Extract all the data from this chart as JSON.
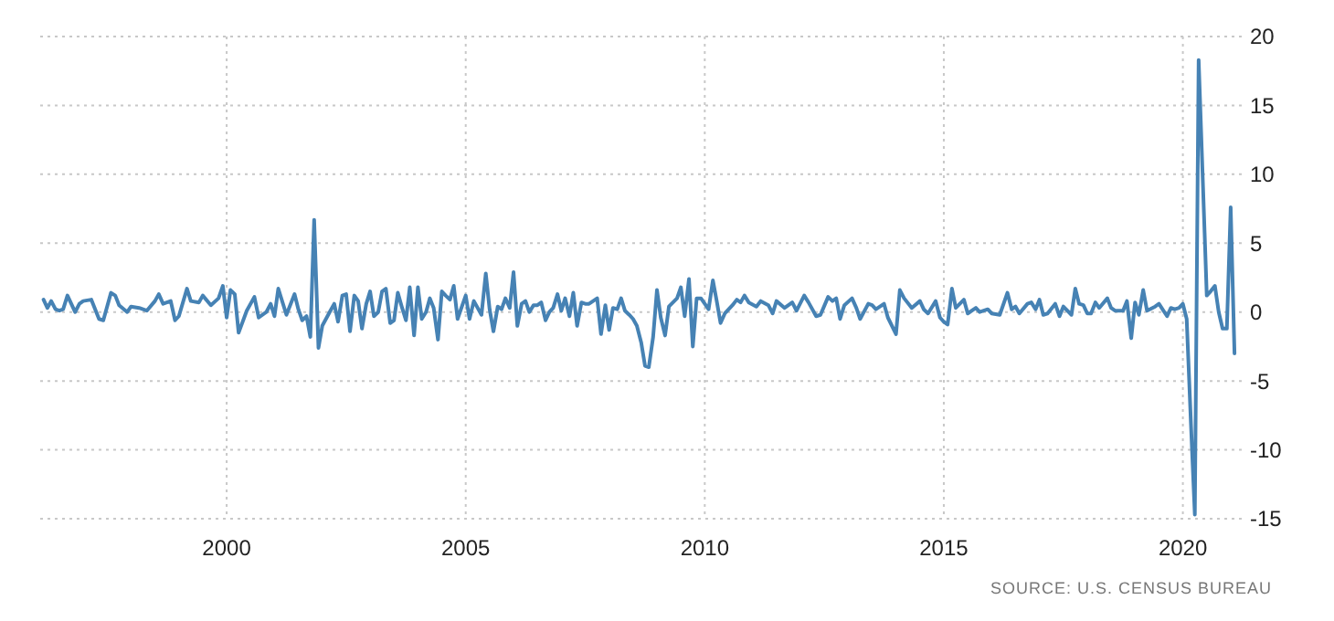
{
  "chart_data": {
    "type": "line",
    "xlim": [
      1996.1,
      2021.25
    ],
    "xticks": [
      2000,
      2005,
      2010,
      2015,
      2020
    ],
    "ylim": [
      -15,
      20
    ],
    "yticks": [
      -15,
      -10,
      -5,
      0,
      5,
      10,
      15,
      20
    ],
    "grid": true,
    "marker": "none",
    "line_style": "solid",
    "annotations": [
      "SOURCE: U.S. CENSUS BUREAU"
    ],
    "series": [
      {
        "color": "#4682b4",
        "x": [
          1996.17,
          1996.25,
          1996.33,
          1996.42,
          1996.5,
          1996.58,
          1996.67,
          1996.83,
          1996.92,
          1997.0,
          1997.17,
          1997.33,
          1997.42,
          1997.58,
          1997.67,
          1997.75,
          1997.92,
          1998.0,
          1998.17,
          1998.33,
          1998.5,
          1998.58,
          1998.67,
          1998.83,
          1998.92,
          1999.0,
          1999.17,
          1999.25,
          1999.42,
          1999.5,
          1999.67,
          1999.83,
          1999.92,
          2000.0,
          2000.08,
          2000.17,
          2000.25,
          2000.42,
          2000.58,
          2000.67,
          2000.83,
          2000.92,
          2001.0,
          2001.08,
          2001.25,
          2001.42,
          2001.5,
          2001.58,
          2001.67,
          2001.75,
          2001.83,
          2001.92,
          2002.0,
          2002.17,
          2002.25,
          2002.33,
          2002.42,
          2002.5,
          2002.58,
          2002.67,
          2002.75,
          2002.83,
          2002.92,
          2003.0,
          2003.08,
          2003.17,
          2003.25,
          2003.33,
          2003.42,
          2003.5,
          2003.58,
          2003.67,
          2003.75,
          2003.83,
          2003.92,
          2004.0,
          2004.08,
          2004.17,
          2004.25,
          2004.33,
          2004.42,
          2004.5,
          2004.58,
          2004.67,
          2004.75,
          2004.83,
          2005.0,
          2005.08,
          2005.17,
          2005.33,
          2005.42,
          2005.5,
          2005.58,
          2005.67,
          2005.75,
          2005.83,
          2005.92,
          2006.0,
          2006.08,
          2006.17,
          2006.25,
          2006.33,
          2006.42,
          2006.5,
          2006.58,
          2006.67,
          2006.75,
          2006.83,
          2006.92,
          2007.0,
          2007.08,
          2007.17,
          2007.25,
          2007.33,
          2007.42,
          2007.5,
          2007.58,
          2007.75,
          2007.83,
          2007.92,
          2008.0,
          2008.08,
          2008.17,
          2008.25,
          2008.33,
          2008.42,
          2008.5,
          2008.58,
          2008.67,
          2008.75,
          2008.83,
          2008.92,
          2009.0,
          2009.08,
          2009.17,
          2009.25,
          2009.42,
          2009.5,
          2009.58,
          2009.67,
          2009.75,
          2009.83,
          2009.92,
          2010.0,
          2010.08,
          2010.17,
          2010.25,
          2010.33,
          2010.42,
          2010.5,
          2010.58,
          2010.67,
          2010.75,
          2010.83,
          2010.92,
          2011.08,
          2011.17,
          2011.33,
          2011.42,
          2011.5,
          2011.67,
          2011.83,
          2011.92,
          2012.08,
          2012.17,
          2012.33,
          2012.42,
          2012.58,
          2012.67,
          2012.75,
          2012.83,
          2012.92,
          2013.08,
          2013.17,
          2013.25,
          2013.42,
          2013.5,
          2013.58,
          2013.75,
          2013.83,
          2014.0,
          2014.08,
          2014.17,
          2014.33,
          2014.5,
          2014.58,
          2014.67,
          2014.83,
          2014.92,
          2015.0,
          2015.08,
          2015.17,
          2015.25,
          2015.42,
          2015.5,
          2015.67,
          2015.75,
          2015.92,
          2016.0,
          2016.17,
          2016.33,
          2016.42,
          2016.5,
          2016.58,
          2016.75,
          2016.83,
          2016.92,
          2017.0,
          2017.08,
          2017.17,
          2017.33,
          2017.42,
          2017.5,
          2017.67,
          2017.75,
          2017.83,
          2017.92,
          2018.0,
          2018.08,
          2018.17,
          2018.25,
          2018.42,
          2018.5,
          2018.58,
          2018.75,
          2018.83,
          2018.92,
          2019.0,
          2019.08,
          2019.17,
          2019.25,
          2019.42,
          2019.5,
          2019.67,
          2019.75,
          2019.83,
          2019.92,
          2020.0,
          2020.08,
          2020.17,
          2020.25,
          2020.33,
          2020.5,
          2020.58,
          2020.67,
          2020.75,
          2020.83,
          2020.92,
          2021.0,
          2021.08
        ],
        "values": [
          0.9,
          0.3,
          0.8,
          0.2,
          0.1,
          0.2,
          1.2,
          0.0,
          0.6,
          0.8,
          0.9,
          -0.5,
          -0.6,
          1.4,
          1.2,
          0.5,
          0.0,
          0.4,
          0.3,
          0.1,
          0.8,
          1.3,
          0.6,
          0.8,
          -0.6,
          -0.3,
          1.7,
          0.8,
          0.7,
          1.2,
          0.5,
          1.0,
          1.9,
          -0.4,
          1.6,
          1.3,
          -1.5,
          0.1,
          1.1,
          -0.4,
          0.0,
          0.6,
          -0.3,
          1.7,
          -0.2,
          1.3,
          0.2,
          -0.6,
          -0.3,
          -1.8,
          6.7,
          -2.6,
          -1.0,
          0.1,
          0.6,
          -0.7,
          1.2,
          1.3,
          -1.4,
          1.2,
          0.8,
          -1.2,
          0.6,
          1.5,
          -0.3,
          0.0,
          1.5,
          1.7,
          -0.8,
          -0.6,
          1.4,
          0.3,
          -0.6,
          1.8,
          -1.7,
          1.8,
          -0.5,
          0.0,
          1.0,
          0.3,
          -2.0,
          1.5,
          1.2,
          0.9,
          1.9,
          -0.5,
          1.2,
          -0.5,
          0.8,
          -0.2,
          2.8,
          0.2,
          -1.4,
          0.4,
          0.2,
          1.0,
          0.3,
          2.9,
          -1.0,
          0.6,
          0.8,
          0.0,
          0.5,
          0.5,
          0.7,
          -0.6,
          0.0,
          0.3,
          1.3,
          0.1,
          1.0,
          -0.3,
          1.4,
          -1.0,
          0.7,
          0.6,
          0.6,
          1.0,
          -1.6,
          0.5,
          -1.3,
          0.3,
          0.2,
          1.0,
          0.1,
          -0.2,
          -0.5,
          -1.0,
          -2.2,
          -3.9,
          -4.0,
          -1.8,
          1.6,
          -0.4,
          -1.7,
          0.4,
          1.0,
          1.8,
          -0.3,
          2.4,
          -2.5,
          1.0,
          1.0,
          0.6,
          0.2,
          2.3,
          0.8,
          -0.8,
          -0.1,
          0.2,
          0.5,
          0.9,
          0.7,
          1.2,
          0.7,
          0.4,
          0.8,
          0.5,
          -0.1,
          0.8,
          0.3,
          0.7,
          0.1,
          1.2,
          0.7,
          -0.3,
          -0.2,
          1.1,
          0.8,
          1.0,
          -0.5,
          0.5,
          1.0,
          0.3,
          -0.5,
          0.6,
          0.5,
          0.2,
          0.6,
          -0.4,
          -1.6,
          1.6,
          1.0,
          0.3,
          0.8,
          0.2,
          -0.1,
          0.8,
          -0.4,
          -0.7,
          -0.9,
          1.7,
          0.3,
          0.9,
          -0.1,
          0.3,
          0.0,
          0.2,
          -0.1,
          -0.2,
          1.4,
          0.2,
          0.4,
          -0.1,
          0.6,
          0.7,
          0.2,
          0.9,
          -0.2,
          -0.1,
          0.6,
          -0.3,
          0.4,
          -0.2,
          1.7,
          0.6,
          0.5,
          -0.1,
          -0.1,
          0.7,
          0.3,
          1.0,
          0.3,
          0.1,
          0.1,
          0.8,
          -1.9,
          0.7,
          -0.2,
          1.6,
          0.1,
          0.4,
          0.6,
          -0.3,
          0.3,
          0.2,
          0.3,
          0.6,
          -0.5,
          -8.2,
          -14.7,
          18.3,
          1.2,
          1.5,
          1.9,
          0.0,
          -1.2,
          -1.2,
          7.6,
          -3.0
        ]
      }
    ]
  }
}
